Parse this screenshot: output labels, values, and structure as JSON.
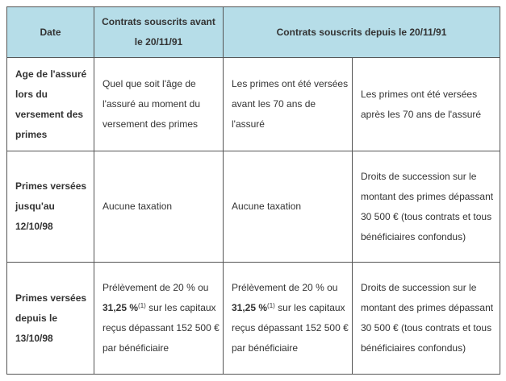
{
  "header": {
    "date": "Date",
    "before": "Contrats souscrits avant le 20/11/91",
    "after": "Contrats souscrits depuis le 20/11/91"
  },
  "rows": [
    {
      "label": "Age de l'assuré lors du versement des primes",
      "col1": "Quel que soit l'âge de l'assuré au moment du versement des primes",
      "col2": "Les primes ont été versées avant les 70 ans de l'assuré",
      "col3": "Les primes ont été versées après les 70 ans de l'assuré"
    },
    {
      "label": "Primes versées jusqu'au 12/10/98",
      "col1": "Aucune taxation",
      "col2": "Aucune taxation",
      "col3": "Droits de succession sur le montant des primes dépassant 30 500 € (tous contrats et tous bénéficiaires confondus)"
    },
    {
      "label": "Primes versées depuis le 13/10/98",
      "col1": {
        "pre": "Prélèvement de 20 % ou",
        "bold": "31,25 %",
        "note": "(1)",
        "post": "sur les capitaux reçus dépassant 152 500 € par bénéficiaire"
      },
      "col2": {
        "pre": "Prélèvement de 20 % ou",
        "bold": "31,25 %",
        "note": "(1)",
        "post": "sur les capitaux reçus dépassant 152 500 € par bénéficiaire"
      },
      "col3": "Droits de succession sur le montant des primes dépassant 30 500 € (tous contrats et tous bénéficiaires confondus)"
    }
  ]
}
